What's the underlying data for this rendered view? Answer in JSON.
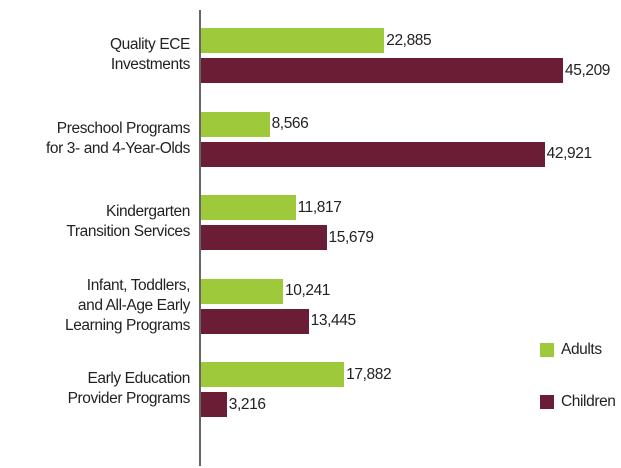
{
  "chart_data": {
    "type": "bar",
    "orientation": "horizontal",
    "categories": [
      "Quality ECE\nInvestments",
      "Preschool Programs\nfor 3- and 4-Year-Olds",
      "Kindergarten\nTransition Services",
      "Infant, Toddlers,\nand All-Age Early\nLearning Programs",
      "Early Education\nProvider Programs"
    ],
    "series": [
      {
        "name": "Adults",
        "color": "#9dc93b",
        "values": [
          22885,
          8566,
          11817,
          10241,
          17882
        ],
        "value_labels": [
          "22,885",
          "8,566",
          "11,817",
          "10,241",
          "17,882"
        ]
      },
      {
        "name": "Children",
        "color": "#6b1d35",
        "values": [
          45209,
          42921,
          15679,
          13445,
          3216
        ],
        "value_labels": [
          "45,209",
          "42,921",
          "15,679",
          "13,445",
          "3,216"
        ]
      }
    ],
    "legend": "right"
  }
}
